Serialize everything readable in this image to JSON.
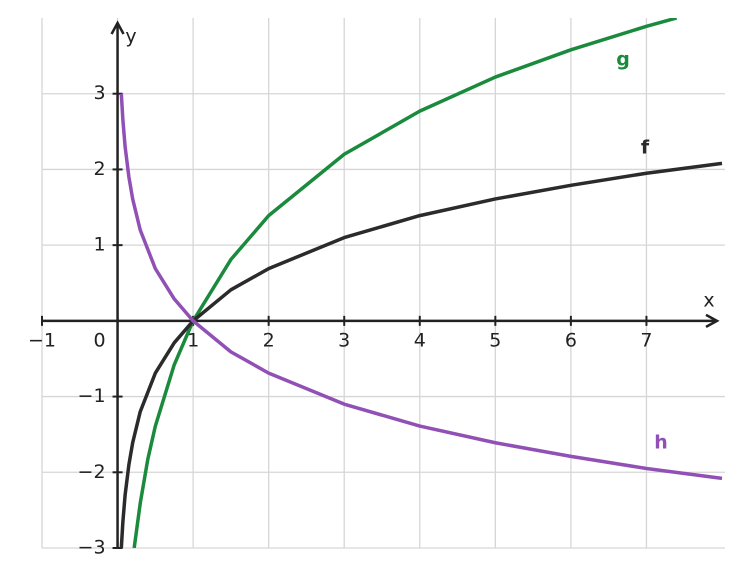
{
  "chart_data": {
    "type": "line",
    "x_label": "x",
    "y_label": "y",
    "xlim": [
      -1,
      8
    ],
    "ylim": [
      -3,
      4
    ],
    "xticks": [
      {
        "value": -1,
        "label": "−1"
      },
      0,
      1,
      2,
      3,
      4,
      5,
      6,
      7
    ],
    "yticks": [
      {
        "value": -3,
        "label": "−3"
      },
      {
        "value": -2,
        "label": "−2"
      },
      {
        "value": -1,
        "label": "−1"
      },
      1,
      2,
      3
    ],
    "grid": true,
    "series": [
      {
        "name": "g",
        "color": "#1a8a3c",
        "x": [
          0.22,
          0.3,
          0.4,
          0.5,
          0.75,
          1,
          1.5,
          2,
          3,
          4,
          5,
          6,
          7,
          7.4
        ],
        "values": [
          -3.0,
          -2.41,
          -1.83,
          -1.39,
          -0.58,
          0,
          0.81,
          1.39,
          2.2,
          2.77,
          3.22,
          3.58,
          3.89,
          4.0
        ]
      },
      {
        "name": "f",
        "color": "#2b2b2b",
        "x": [
          0.05,
          0.07,
          0.1,
          0.15,
          0.2,
          0.3,
          0.5,
          0.75,
          1,
          1.5,
          2,
          3,
          4,
          5,
          6,
          7,
          8
        ],
        "values": [
          -3.0,
          -2.66,
          -2.3,
          -1.9,
          -1.61,
          -1.2,
          -0.69,
          -0.29,
          0,
          0.41,
          0.69,
          1.1,
          1.39,
          1.61,
          1.79,
          1.95,
          2.08
        ]
      },
      {
        "name": "h",
        "color": "#9150b5",
        "x": [
          0.05,
          0.07,
          0.1,
          0.15,
          0.2,
          0.3,
          0.5,
          0.75,
          1,
          1.5,
          2,
          3,
          4,
          5,
          6,
          7,
          8
        ],
        "values": [
          3.0,
          2.66,
          2.3,
          1.9,
          1.61,
          1.2,
          0.69,
          0.29,
          0,
          -0.41,
          -0.69,
          -1.1,
          -1.39,
          -1.61,
          -1.79,
          -1.95,
          -2.08
        ]
      }
    ]
  }
}
